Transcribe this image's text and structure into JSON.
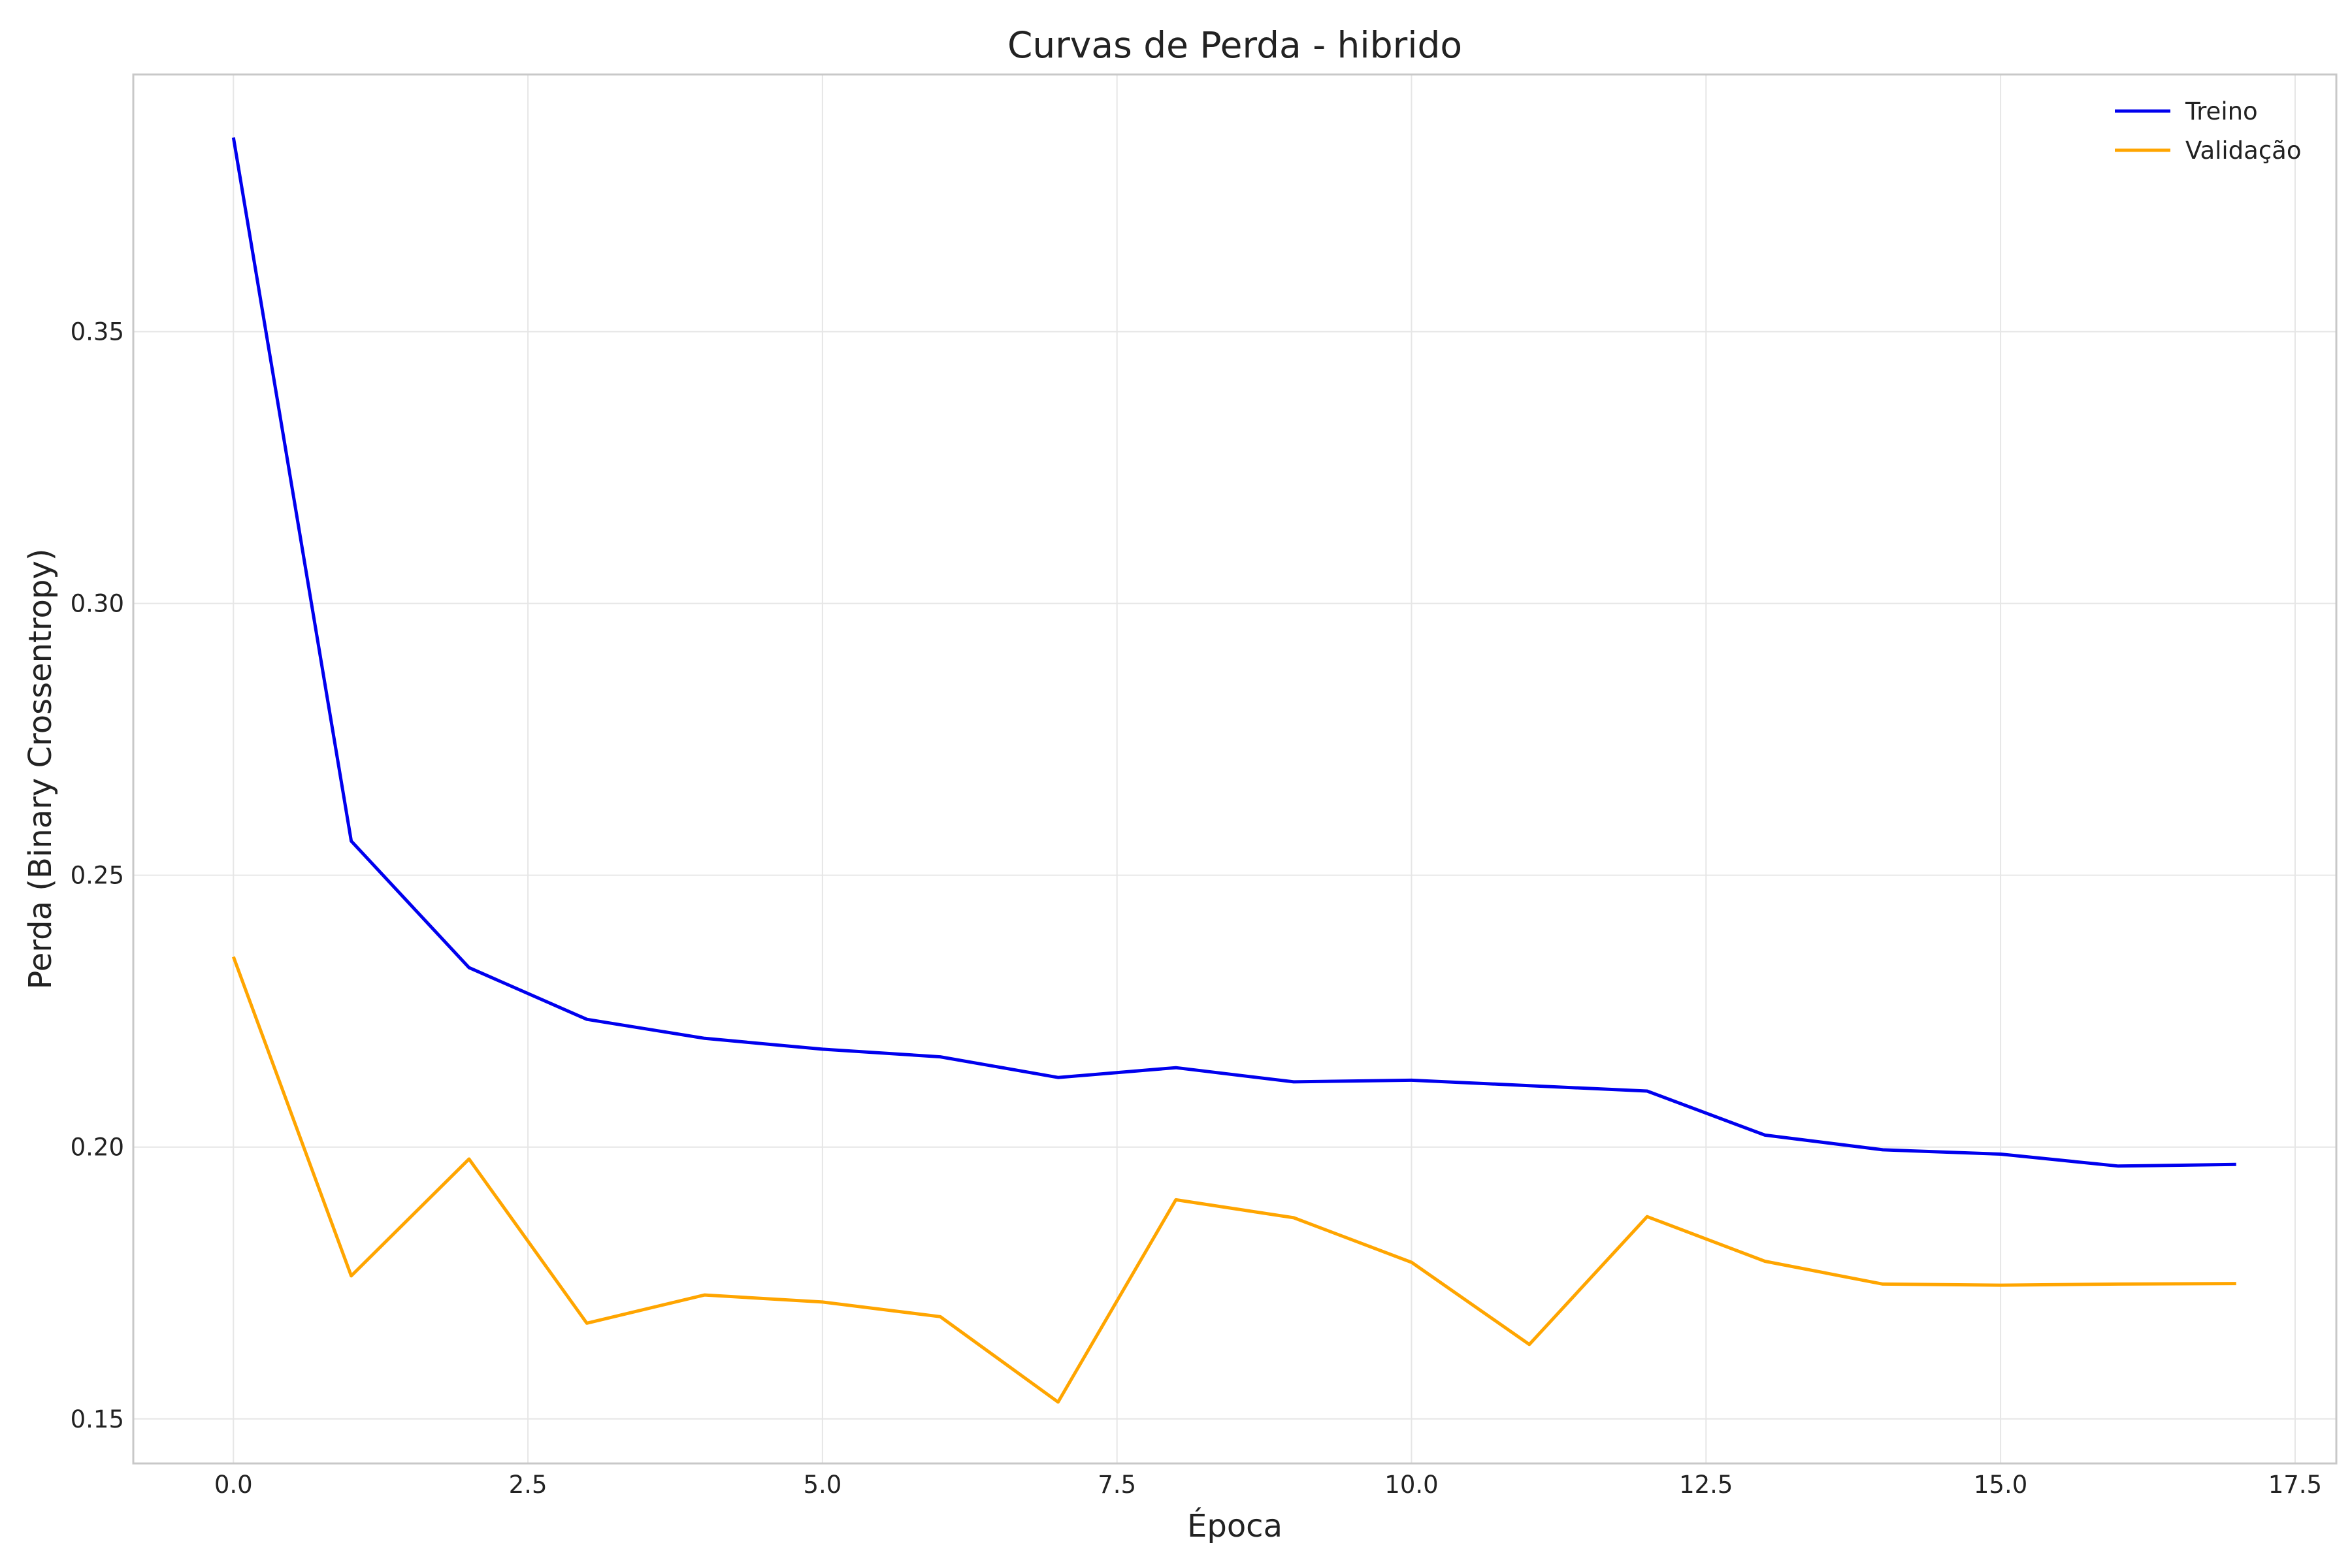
{
  "chart_data": {
    "type": "line",
    "title": "Curvas de Perda - hibrido",
    "xlabel": "Época",
    "ylabel": "Perda (Binary Crossentropy)",
    "xlim": [
      -0.85,
      17.85
    ],
    "ylim": [
      0.1418,
      0.3973
    ],
    "x_ticks": [
      0.0,
      2.5,
      5.0,
      7.5,
      10.0,
      12.5,
      15.0,
      17.5
    ],
    "x_tick_labels": [
      "0.0",
      "2.5",
      "5.0",
      "7.5",
      "10.0",
      "12.5",
      "15.0",
      "17.5"
    ],
    "y_ticks": [
      0.15,
      0.2,
      0.25,
      0.3,
      0.35
    ],
    "y_tick_labels": [
      "0.15",
      "0.20",
      "0.25",
      "0.30",
      "0.35"
    ],
    "grid": true,
    "legend_position": "top-right",
    "x": [
      0,
      1,
      2,
      3,
      4,
      5,
      6,
      7,
      8,
      9,
      10,
      11,
      12,
      13,
      14,
      15,
      16,
      17
    ],
    "series": [
      {
        "name": "Treino",
        "color": "#0000ee",
        "values": [
          0.3857,
          0.2563,
          0.233,
          0.2235,
          0.22,
          0.218,
          0.2166,
          0.2128,
          0.2146,
          0.212,
          0.2123,
          0.2113,
          0.2103,
          0.2022,
          0.1995,
          0.1987,
          0.1965,
          0.1968
        ]
      },
      {
        "name": "Validação",
        "color": "#ffa500",
        "values": [
          0.235,
          0.1763,
          0.1978,
          0.1676,
          0.1728,
          0.1715,
          0.1688,
          0.1531,
          0.1903,
          0.187,
          0.1788,
          0.1637,
          0.1872,
          0.179,
          0.1748,
          0.1746,
          0.1748,
          0.1749
        ]
      }
    ]
  }
}
